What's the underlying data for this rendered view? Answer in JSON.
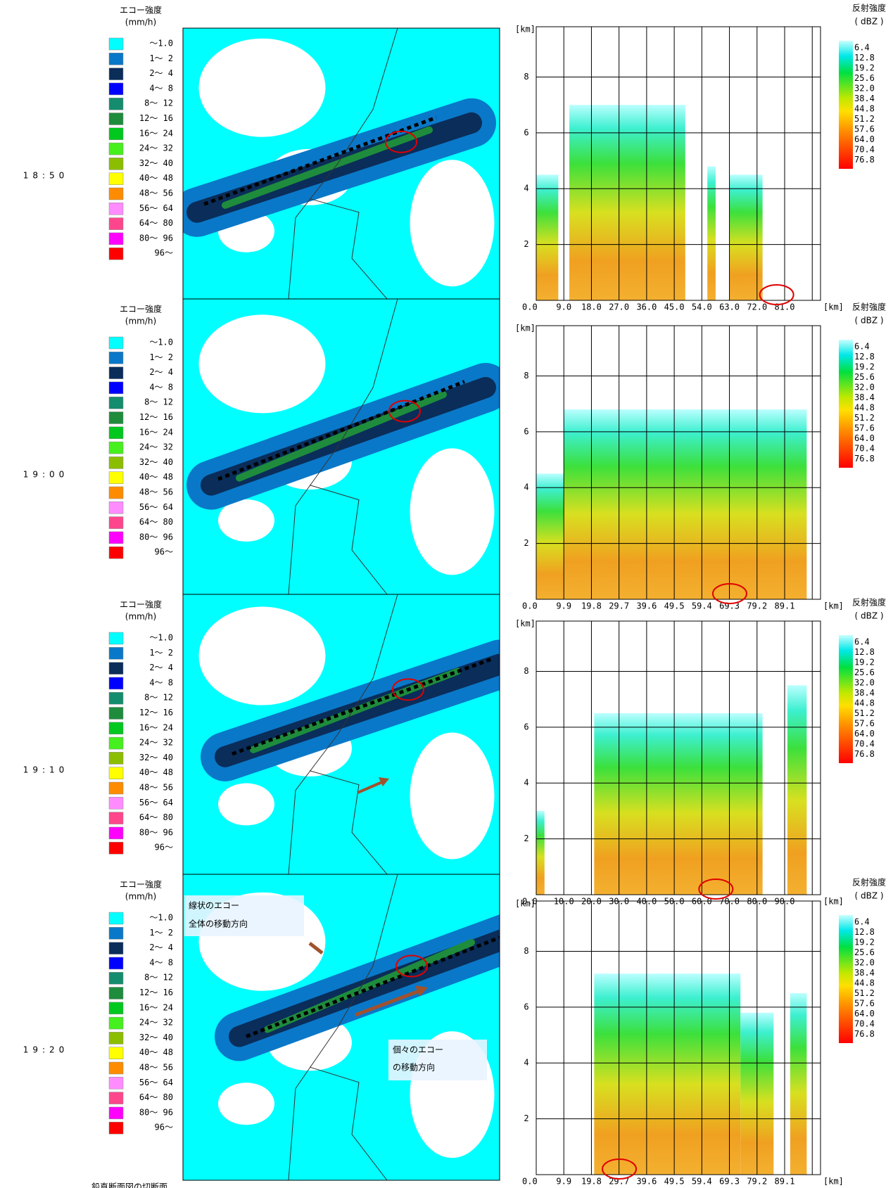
{
  "legend": {
    "title": "エコー強度",
    "unit": "(mm/h)",
    "items": [
      {
        "label": "～1.0",
        "color": "#00ffff"
      },
      {
        "label": "1～ 2",
        "color": "#0a78c8"
      },
      {
        "label": "2～ 4",
        "color": "#0a2d5a"
      },
      {
        "label": "4～ 8",
        "color": "#0000ff"
      },
      {
        "label": "8～ 12",
        "color": "#148c6e"
      },
      {
        "label": "12～ 16",
        "color": "#1e8c3c"
      },
      {
        "label": "16～ 24",
        "color": "#00c81e"
      },
      {
        "label": "24～ 32",
        "color": "#46f01e"
      },
      {
        "label": "32～ 40",
        "color": "#8cbe00"
      },
      {
        "label": "40～ 48",
        "color": "#ffff00"
      },
      {
        "label": "48～ 56",
        "color": "#ff8c00"
      },
      {
        "label": "56～ 64",
        "color": "#ff8cff"
      },
      {
        "label": "64～ 80",
        "color": "#ff468c"
      },
      {
        "label": "80～ 96",
        "color": "#ff00ff"
      },
      {
        "label": "96～",
        "color": "#ff0000"
      }
    ]
  },
  "colorbar": {
    "title": "反射強度",
    "unit": "( dBZ )",
    "labels": [
      "6.4",
      "12.8",
      "19.2",
      "25.6",
      "32.0",
      "38.4",
      "44.8",
      "51.2",
      "57.6",
      "64.0",
      "70.4",
      "76.8"
    ]
  },
  "axis_unit": "[km]",
  "panels": [
    {
      "time": "18:50",
      "x_ticks": [
        "0.0",
        "9.0",
        "18.0",
        "27.0",
        "36.0",
        "45.0",
        "54.0",
        "63.0",
        "72.0",
        "81.0"
      ],
      "y_ticks": [
        "2",
        "4",
        "6",
        "8"
      ]
    },
    {
      "time": "19:00",
      "x_ticks": [
        "0.0",
        "9.9",
        "19.8",
        "29.7",
        "39.6",
        "49.5",
        "59.4",
        "69.3",
        "79.2",
        "89.1"
      ],
      "y_ticks": [
        "2",
        "4",
        "6",
        "8"
      ]
    },
    {
      "time": "19:10",
      "x_ticks": [
        "0.0",
        "10.0",
        "20.0",
        "30.0",
        "40.0",
        "50.0",
        "60.0",
        "70.0",
        "80.0",
        "90.0"
      ],
      "y_ticks": [
        "2",
        "4",
        "6",
        "8"
      ]
    },
    {
      "time": "19:20",
      "x_ticks": [
        "0.0",
        "9.9",
        "19.8",
        "29.7",
        "39.6",
        "49.5",
        "59.4",
        "69.3",
        "79.2",
        "89.1"
      ],
      "y_ticks": [
        "2",
        "4",
        "6",
        "8"
      ]
    }
  ],
  "annotations": {
    "line_echo": [
      "線状のエコー",
      "全体の移動方向"
    ],
    "cell_echo": [
      "個々のエコー",
      "の移動方向"
    ]
  },
  "caption": "鉛直断面図の切断面"
}
